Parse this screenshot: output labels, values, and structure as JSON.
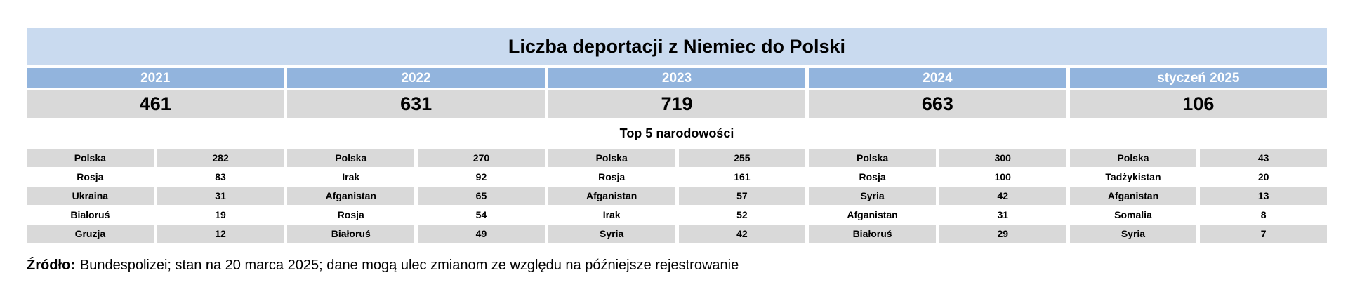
{
  "title": "Liczba deportacji z Niemiec do Polski",
  "subtitle": "Top 5 narodowości",
  "source": {
    "label": "Źródło:",
    "text": "Bundespolizei; stan na 20 marca 2025; dane mogą ulec zmianom ze względu na późniejsze rejestrowanie"
  },
  "colors": {
    "title_bg": "#c9daef",
    "year_header_bg": "#92b4dd",
    "row_gray": "#d9d9d9",
    "year_text": "#ffffff",
    "text": "#000000"
  },
  "chart_data": {
    "type": "table",
    "title": "Liczba deportacji z Niemiec do Polski",
    "subtitle": "Top 5 narodowości",
    "columns": [
      {
        "year": "2021",
        "total": 461,
        "top5": [
          [
            "Polska",
            282
          ],
          [
            "Rosja",
            83
          ],
          [
            "Ukraina",
            31
          ],
          [
            "Białoruś",
            19
          ],
          [
            "Gruzja",
            12
          ]
        ]
      },
      {
        "year": "2022",
        "total": 631,
        "top5": [
          [
            "Polska",
            270
          ],
          [
            "Irak",
            92
          ],
          [
            "Afganistan",
            65
          ],
          [
            "Rosja",
            54
          ],
          [
            "Białoruś",
            49
          ]
        ]
      },
      {
        "year": "2023",
        "total": 719,
        "top5": [
          [
            "Polska",
            255
          ],
          [
            "Rosja",
            161
          ],
          [
            "Afganistan",
            57
          ],
          [
            "Irak",
            52
          ],
          [
            "Syria",
            42
          ]
        ]
      },
      {
        "year": "2024",
        "total": 663,
        "top5": [
          [
            "Polska",
            300
          ],
          [
            "Rosja",
            100
          ],
          [
            "Syria",
            42
          ],
          [
            "Afganistan",
            31
          ],
          [
            "Białoruś",
            29
          ]
        ]
      },
      {
        "year": "styczeń 2025",
        "total": 106,
        "top5": [
          [
            "Polska",
            43
          ],
          [
            "Tadżykistan",
            20
          ],
          [
            "Afganistan",
            13
          ],
          [
            "Somalia",
            8
          ],
          [
            "Syria",
            7
          ]
        ]
      }
    ]
  }
}
